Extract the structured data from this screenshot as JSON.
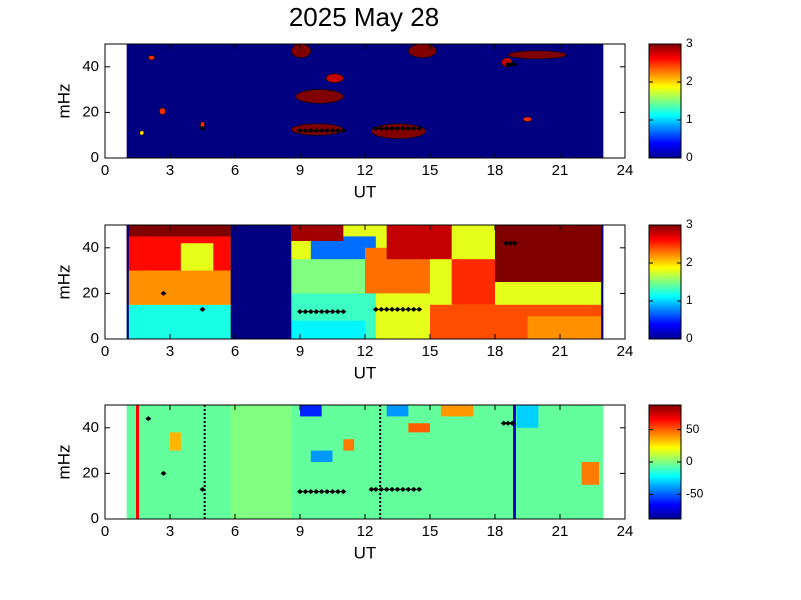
{
  "chart_data": [
    {
      "type": "heatmap",
      "title": "2025 May 28",
      "xlabel": "UT",
      "ylabel": "mHz",
      "xlim": [
        0,
        24
      ],
      "xticks": [
        0,
        3,
        6,
        9,
        12,
        15,
        18,
        21,
        24
      ],
      "ylim": [
        0,
        50
      ],
      "yticks": [
        0,
        20,
        40
      ],
      "clim": [
        0,
        3
      ],
      "cticks": [
        0,
        1,
        2,
        3
      ],
      "colormap": "jet",
      "cell_shape": "ellipse",
      "background": {
        "x": [
          1,
          23
        ],
        "v": 0
      },
      "cells": [
        {
          "x": [
            8.6,
            9.5
          ],
          "y": [
            44,
            50
          ],
          "v": 3
        },
        {
          "x": [
            14.0,
            15.3
          ],
          "y": [
            44,
            50
          ],
          "v": 3
        },
        {
          "x": [
            18.6,
            21.3
          ],
          "y": [
            43.5,
            47
          ],
          "v": 3
        },
        {
          "x": [
            10.2,
            11.0
          ],
          "y": [
            33,
            37
          ],
          "v": 2.8
        },
        {
          "x": [
            8.8,
            11.0
          ],
          "y": [
            24,
            30
          ],
          "v": 3
        },
        {
          "x": [
            8.6,
            11.0
          ],
          "y": [
            10,
            15
          ],
          "v": 3
        },
        {
          "x": [
            12.3,
            14.8
          ],
          "y": [
            8.5,
            15
          ],
          "v": 3
        },
        {
          "x": [
            2.0,
            2.3
          ],
          "y": [
            43,
            45
          ],
          "v": 2.5
        },
        {
          "x": [
            2.5,
            2.8
          ],
          "y": [
            19,
            22
          ],
          "v": 2.5
        },
        {
          "x": [
            1.6,
            1.8
          ],
          "y": [
            10,
            12
          ],
          "v": 2
        },
        {
          "x": [
            4.4,
            4.6
          ],
          "y": [
            13,
            16
          ],
          "v": 2.5
        },
        {
          "x": [
            19.3,
            19.7
          ],
          "y": [
            16,
            18
          ],
          "v": 2.5
        },
        {
          "x": [
            18.3,
            18.8
          ],
          "y": [
            40,
            44
          ],
          "v": 2.8
        }
      ],
      "markers": {
        "x": [
          4.5,
          9,
          9.25,
          9.5,
          9.75,
          10,
          10.25,
          10.5,
          10.75,
          11,
          12.5,
          12.75,
          13,
          13.25,
          13.5,
          13.75,
          14,
          14.25,
          14.5,
          18.6,
          18.75,
          18.9
        ],
        "y": [
          13,
          12,
          12,
          12,
          12,
          12,
          12,
          12,
          12,
          12,
          13,
          13,
          13,
          13,
          13,
          13,
          13,
          13,
          13,
          41,
          41,
          41
        ]
      }
    },
    {
      "type": "heatmap",
      "xlabel": "UT",
      "ylabel": "mHz",
      "xlim": [
        0,
        24
      ],
      "xticks": [
        0,
        3,
        6,
        9,
        12,
        15,
        18,
        21,
        24
      ],
      "ylim": [
        0,
        50
      ],
      "yticks": [
        0,
        20,
        40
      ],
      "clim": [
        0,
        3
      ],
      "cticks": [
        0,
        1,
        2,
        3
      ],
      "colormap": "jet",
      "cell_shape": "rect",
      "background": {
        "x": [
          1,
          23
        ],
        "v": 1.8
      },
      "cells": [
        {
          "x": [
            1,
            5.8
          ],
          "y": [
            0,
            15
          ],
          "v": 1.2
        },
        {
          "x": [
            1,
            5.8
          ],
          "y": [
            15,
            30
          ],
          "v": 2.2
        },
        {
          "x": [
            1,
            5.8
          ],
          "y": [
            30,
            50
          ],
          "v": 2.6
        },
        {
          "x": [
            3.5,
            5
          ],
          "y": [
            30,
            42
          ],
          "v": 1.8
        },
        {
          "x": [
            1,
            5.8
          ],
          "y": [
            45,
            50
          ],
          "v": 3
        },
        {
          "x": [
            8.6,
            13
          ],
          "y": [
            20,
            35
          ],
          "v": 1.5
        },
        {
          "x": [
            8.6,
            12.5
          ],
          "y": [
            0,
            20
          ],
          "v": 1.3
        },
        {
          "x": [
            8.6,
            12
          ],
          "y": [
            0,
            8
          ],
          "v": 1.1
        },
        {
          "x": [
            9.5,
            12.5
          ],
          "y": [
            35,
            45
          ],
          "v": 0.7
        },
        {
          "x": [
            12,
            15
          ],
          "y": [
            20,
            40
          ],
          "v": 2.3
        },
        {
          "x": [
            13,
            16
          ],
          "y": [
            35,
            50
          ],
          "v": 2.8
        },
        {
          "x": [
            8.6,
            11
          ],
          "y": [
            43,
            50
          ],
          "v": 2.9
        },
        {
          "x": [
            15,
            23
          ],
          "y": [
            0,
            15
          ],
          "v": 2.4
        },
        {
          "x": [
            16,
            18
          ],
          "y": [
            15,
            35
          ],
          "v": 2.5
        },
        {
          "x": [
            18,
            23
          ],
          "y": [
            25,
            50
          ],
          "v": 3
        },
        {
          "x": [
            19.5,
            23
          ],
          "y": [
            0,
            10
          ],
          "v": 2.2
        },
        {
          "x": [
            5.8,
            8.6
          ],
          "y": [
            0,
            50
          ],
          "v": 0
        },
        {
          "x": [
            1,
            1.1
          ],
          "y": [
            0,
            50
          ],
          "v": 0
        },
        {
          "x": [
            22.9,
            23
          ],
          "y": [
            0,
            50
          ],
          "v": 0
        }
      ],
      "markers": {
        "x": [
          2.7,
          4.5,
          9,
          9.25,
          9.5,
          9.75,
          10,
          10.25,
          10.5,
          10.75,
          11,
          12.5,
          12.75,
          13,
          13.25,
          13.5,
          13.75,
          14,
          14.25,
          14.5,
          18.5,
          18.7,
          18.9
        ],
        "y": [
          20,
          13,
          12,
          12,
          12,
          12,
          12,
          12,
          12,
          12,
          12,
          13,
          13,
          13,
          13,
          13,
          13,
          13,
          13,
          13,
          42,
          42,
          42
        ]
      }
    },
    {
      "type": "heatmap",
      "xlabel": "UT",
      "ylabel": "mHz",
      "xlim": [
        0,
        24
      ],
      "xticks": [
        0,
        3,
        6,
        9,
        12,
        15,
        18,
        21,
        24
      ],
      "ylim": [
        0,
        50
      ],
      "yticks": [
        0,
        20,
        40
      ],
      "clim": [
        -88,
        88
      ],
      "cticks": [
        -50,
        0,
        50
      ],
      "colormap": "jet",
      "cell_shape": "rect",
      "background": {
        "x": [
          1,
          23
        ],
        "v": -5
      },
      "cells": [
        {
          "x": [
            5.8,
            8.6
          ],
          "y": [
            0,
            50
          ],
          "v": 0
        },
        {
          "x": [
            9,
            10
          ],
          "y": [
            45,
            50
          ],
          "v": -60
        },
        {
          "x": [
            9.5,
            10.5
          ],
          "y": [
            25,
            30
          ],
          "v": -40
        },
        {
          "x": [
            15.5,
            17
          ],
          "y": [
            45,
            50
          ],
          "v": 40
        },
        {
          "x": [
            11,
            11.5
          ],
          "y": [
            30,
            35
          ],
          "v": 45
        },
        {
          "x": [
            22,
            22.8
          ],
          "y": [
            15,
            25
          ],
          "v": 45
        },
        {
          "x": [
            13,
            14
          ],
          "y": [
            45,
            50
          ],
          "v": -40
        },
        {
          "x": [
            19,
            20
          ],
          "y": [
            40,
            50
          ],
          "v": -30
        },
        {
          "x": [
            3,
            3.5
          ],
          "y": [
            30,
            38
          ],
          "v": 35
        },
        {
          "x": [
            14,
            15
          ],
          "y": [
            38,
            42
          ],
          "v": 50
        }
      ],
      "vlines": [
        {
          "x": 1.5,
          "color": "#ff0000",
          "style": "solid"
        },
        {
          "x": 18.9,
          "color": "#0000cc",
          "style": "solid"
        },
        {
          "x": 4.6,
          "color": "#000000",
          "style": "dotted"
        },
        {
          "x": 12.7,
          "color": "#000000",
          "style": "dotted"
        }
      ],
      "markers": {
        "x": [
          2.0,
          2.7,
          4.5,
          9,
          9.25,
          9.5,
          9.75,
          10,
          10.25,
          10.5,
          10.75,
          11,
          12.3,
          12.5,
          12.75,
          13,
          13.25,
          13.5,
          13.75,
          14,
          14.25,
          14.5,
          18.4,
          18.6,
          18.8
        ],
        "y": [
          44,
          20,
          13,
          12,
          12,
          12,
          12,
          12,
          12,
          12,
          12,
          12,
          13,
          13,
          13,
          13,
          13,
          13,
          13,
          13,
          13,
          13,
          42,
          42,
          42
        ]
      }
    }
  ]
}
